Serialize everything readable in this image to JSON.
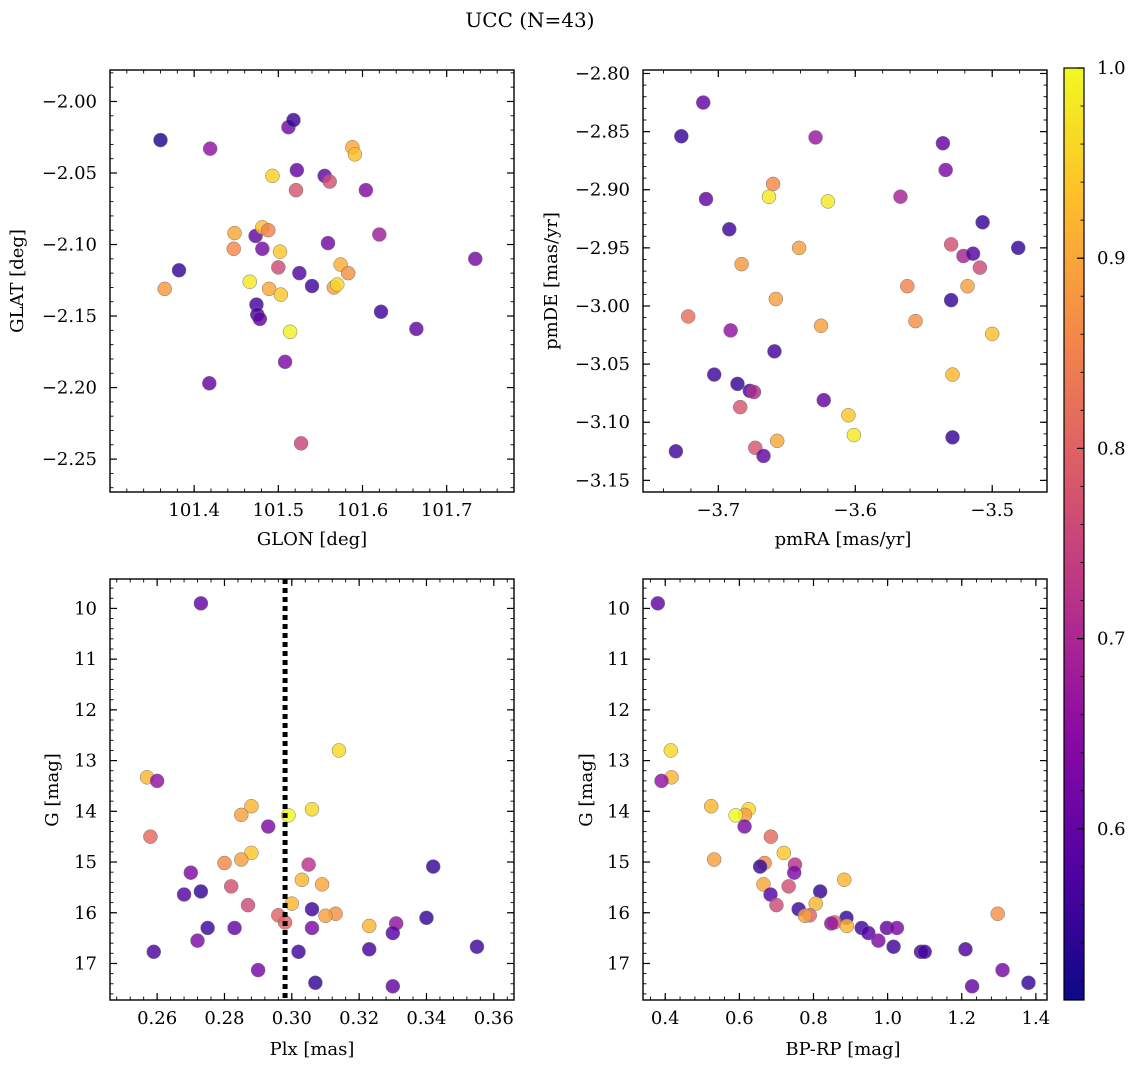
{
  "figure": {
    "title": "UCC (N=43)"
  },
  "colorbar": {
    "min": 0.51,
    "max": 1.0,
    "ticks": [
      0.6,
      0.7,
      0.8,
      0.9,
      1.0
    ],
    "tick_labels": [
      "0.6",
      "0.7",
      "0.8",
      "0.9",
      "1.0"
    ],
    "colormap": "plasma",
    "colors": [
      "#0d0887",
      "#5302a3",
      "#8b0aa5",
      "#b83289",
      "#db5c68",
      "#f48849",
      "#febd2a",
      "#f0f921"
    ]
  },
  "chart_data": [
    {
      "id": "glon-glat",
      "type": "scatter",
      "xlabel": "GLON [deg]",
      "ylabel": "GLAT [deg]",
      "xlim": [
        101.3,
        101.78
      ],
      "ylim": [
        -2.273,
        -1.978
      ],
      "y_inverted": false,
      "xticks": [
        101.4,
        101.5,
        101.6,
        101.7
      ],
      "xtick_labels": [
        "101.4",
        "101.5",
        "101.6",
        "101.7"
      ],
      "yticks": [
        -2.25,
        -2.2,
        -2.15,
        -2.1,
        -2.05,
        -2.0
      ],
      "ytick_labels": [
        "−2.25",
        "−2.20",
        "−2.15",
        "−2.10",
        "−2.05",
        "−2.00"
      ],
      "points": [
        {
          "x": 101.36,
          "y": -2.027,
          "c": 0.53
        },
        {
          "x": 101.419,
          "y": -2.033,
          "c": 0.66
        },
        {
          "x": 101.382,
          "y": -2.118,
          "c": 0.55
        },
        {
          "x": 101.365,
          "y": -2.131,
          "c": 0.88
        },
        {
          "x": 101.418,
          "y": -2.197,
          "c": 0.6
        },
        {
          "x": 101.447,
          "y": -2.103,
          "c": 0.86
        },
        {
          "x": 101.448,
          "y": -2.092,
          "c": 0.9
        },
        {
          "x": 101.466,
          "y": -2.126,
          "c": 0.98
        },
        {
          "x": 101.473,
          "y": -2.094,
          "c": 0.6
        },
        {
          "x": 101.474,
          "y": -2.142,
          "c": 0.56
        },
        {
          "x": 101.475,
          "y": -2.149,
          "c": 0.57
        },
        {
          "x": 101.478,
          "y": -2.152,
          "c": 0.6
        },
        {
          "x": 101.481,
          "y": -2.103,
          "c": 0.62
        },
        {
          "x": 101.481,
          "y": -2.088,
          "c": 0.93
        },
        {
          "x": 101.488,
          "y": -2.09,
          "c": 0.85
        },
        {
          "x": 101.489,
          "y": -2.131,
          "c": 0.9
        },
        {
          "x": 101.493,
          "y": -2.052,
          "c": 0.95
        },
        {
          "x": 101.5,
          "y": -2.116,
          "c": 0.76
        },
        {
          "x": 101.502,
          "y": -2.105,
          "c": 0.94
        },
        {
          "x": 101.503,
          "y": -2.135,
          "c": 0.94
        },
        {
          "x": 101.508,
          "y": -2.182,
          "c": 0.63
        },
        {
          "x": 101.512,
          "y": -2.018,
          "c": 0.62
        },
        {
          "x": 101.514,
          "y": -2.161,
          "c": 0.99
        },
        {
          "x": 101.518,
          "y": -2.013,
          "c": 0.55
        },
        {
          "x": 101.521,
          "y": -2.062,
          "c": 0.78
        },
        {
          "x": 101.522,
          "y": -2.048,
          "c": 0.6
        },
        {
          "x": 101.525,
          "y": -2.12,
          "c": 0.58
        },
        {
          "x": 101.527,
          "y": -2.239,
          "c": 0.75
        },
        {
          "x": 101.54,
          "y": -2.129,
          "c": 0.56
        },
        {
          "x": 101.555,
          "y": -2.052,
          "c": 0.6
        },
        {
          "x": 101.559,
          "y": -2.099,
          "c": 0.62
        },
        {
          "x": 101.561,
          "y": -2.056,
          "c": 0.77
        },
        {
          "x": 101.566,
          "y": -2.13,
          "c": 0.89
        },
        {
          "x": 101.57,
          "y": -2.128,
          "c": 0.96
        },
        {
          "x": 101.574,
          "y": -2.114,
          "c": 0.91
        },
        {
          "x": 101.583,
          "y": -2.12,
          "c": 0.87
        },
        {
          "x": 101.588,
          "y": -2.032,
          "c": 0.9
        },
        {
          "x": 101.591,
          "y": -2.037,
          "c": 0.93
        },
        {
          "x": 101.604,
          "y": -2.062,
          "c": 0.64
        },
        {
          "x": 101.62,
          "y": -2.093,
          "c": 0.68
        },
        {
          "x": 101.622,
          "y": -2.147,
          "c": 0.56
        },
        {
          "x": 101.664,
          "y": -2.159,
          "c": 0.6
        },
        {
          "x": 101.734,
          "y": -2.11,
          "c": 0.62
        }
      ]
    },
    {
      "id": "pmra-pmde",
      "type": "scatter",
      "xlabel": "pmRA [mas/yr]",
      "ylabel": "pmDE [mas/yr]",
      "xlim": [
        -3.755,
        -3.46
      ],
      "ylim": [
        -3.16,
        -2.797
      ],
      "y_inverted": false,
      "xticks": [
        -3.7,
        -3.6,
        -3.5
      ],
      "xtick_labels": [
        "−3.7",
        "−3.6",
        "−3.5"
      ],
      "yticks": [
        -3.15,
        -3.1,
        -3.05,
        -3.0,
        -2.95,
        -2.9,
        -2.85,
        -2.8
      ],
      "ytick_labels": [
        "−3.15",
        "−3.10",
        "−3.05",
        "−3.00",
        "−2.95",
        "−2.90",
        "−2.85",
        "−2.80"
      ],
      "points": [
        {
          "x": -3.711,
          "y": -2.825,
          "c": 0.6
        },
        {
          "x": -3.727,
          "y": -2.854,
          "c": 0.55
        },
        {
          "x": -3.709,
          "y": -2.908,
          "c": 0.6
        },
        {
          "x": -3.692,
          "y": -2.934,
          "c": 0.56
        },
        {
          "x": -3.731,
          "y": -3.125,
          "c": 0.56
        },
        {
          "x": -3.722,
          "y": -3.009,
          "c": 0.82
        },
        {
          "x": -3.691,
          "y": -3.021,
          "c": 0.66
        },
        {
          "x": -3.703,
          "y": -3.059,
          "c": 0.56
        },
        {
          "x": -3.686,
          "y": -3.067,
          "c": 0.55
        },
        {
          "x": -3.683,
          "y": -2.964,
          "c": 0.88
        },
        {
          "x": -3.684,
          "y": -3.087,
          "c": 0.78
        },
        {
          "x": -3.677,
          "y": -3.073,
          "c": 0.57
        },
        {
          "x": -3.674,
          "y": -3.074,
          "c": 0.71
        },
        {
          "x": -3.673,
          "y": -3.122,
          "c": 0.78
        },
        {
          "x": -3.667,
          "y": -3.129,
          "c": 0.6
        },
        {
          "x": -3.663,
          "y": -2.906,
          "c": 0.98
        },
        {
          "x": -3.66,
          "y": -2.895,
          "c": 0.86
        },
        {
          "x": -3.659,
          "y": -3.039,
          "c": 0.56
        },
        {
          "x": -3.658,
          "y": -2.994,
          "c": 0.89
        },
        {
          "x": -3.657,
          "y": -3.116,
          "c": 0.9
        },
        {
          "x": -3.641,
          "y": -2.95,
          "c": 0.89
        },
        {
          "x": -3.629,
          "y": -2.855,
          "c": 0.67
        },
        {
          "x": -3.625,
          "y": -3.017,
          "c": 0.89
        },
        {
          "x": -3.623,
          "y": -3.081,
          "c": 0.6
        },
        {
          "x": -3.62,
          "y": -2.91,
          "c": 0.98
        },
        {
          "x": -3.605,
          "y": -3.094,
          "c": 0.94
        },
        {
          "x": -3.601,
          "y": -3.111,
          "c": 0.98
        },
        {
          "x": -3.567,
          "y": -2.906,
          "c": 0.69
        },
        {
          "x": -3.562,
          "y": -2.983,
          "c": 0.85
        },
        {
          "x": -3.556,
          "y": -3.013,
          "c": 0.87
        },
        {
          "x": -3.536,
          "y": -2.86,
          "c": 0.6
        },
        {
          "x": -3.534,
          "y": -2.883,
          "c": 0.63
        },
        {
          "x": -3.53,
          "y": -2.947,
          "c": 0.77
        },
        {
          "x": -3.53,
          "y": -2.995,
          "c": 0.55
        },
        {
          "x": -3.529,
          "y": -3.059,
          "c": 0.92
        },
        {
          "x": -3.529,
          "y": -3.113,
          "c": 0.55
        },
        {
          "x": -3.521,
          "y": -2.957,
          "c": 0.69
        },
        {
          "x": -3.518,
          "y": -2.983,
          "c": 0.89
        },
        {
          "x": -3.514,
          "y": -2.955,
          "c": 0.58
        },
        {
          "x": -3.509,
          "y": -2.967,
          "c": 0.76
        },
        {
          "x": -3.507,
          "y": -2.928,
          "c": 0.55
        },
        {
          "x": -3.5,
          "y": -3.024,
          "c": 0.93
        },
        {
          "x": -3.481,
          "y": -2.95,
          "c": 0.55
        }
      ]
    },
    {
      "id": "plx-g",
      "type": "scatter",
      "xlabel": "Plx [mas]",
      "ylabel": "G [mag]",
      "xlim": [
        0.246,
        0.366
      ],
      "ylim": [
        9.42,
        17.72
      ],
      "y_inverted": true,
      "vline": 0.298,
      "xticks": [
        0.26,
        0.28,
        0.3,
        0.32,
        0.34,
        0.36
      ],
      "xtick_labels": [
        "0.26",
        "0.28",
        "0.30",
        "0.32",
        "0.34",
        "0.36"
      ],
      "yticks": [
        10,
        11,
        12,
        13,
        14,
        15,
        16,
        17
      ],
      "ytick_labels": [
        "10",
        "11",
        "12",
        "13",
        "14",
        "15",
        "16",
        "17"
      ],
      "points": [
        {
          "x": 0.273,
          "y": 9.9,
          "c": 0.6
        },
        {
          "x": 0.314,
          "y": 12.8,
          "c": 0.96
        },
        {
          "x": 0.257,
          "y": 13.33,
          "c": 0.92
        },
        {
          "x": 0.26,
          "y": 13.4,
          "c": 0.66
        },
        {
          "x": 0.288,
          "y": 13.9,
          "c": 0.92
        },
        {
          "x": 0.306,
          "y": 13.96,
          "c": 0.96
        },
        {
          "x": 0.285,
          "y": 14.07,
          "c": 0.89
        },
        {
          "x": 0.299,
          "y": 14.08,
          "c": 1.0
        },
        {
          "x": 0.293,
          "y": 14.3,
          "c": 0.63
        },
        {
          "x": 0.258,
          "y": 14.5,
          "c": 0.81
        },
        {
          "x": 0.288,
          "y": 14.82,
          "c": 0.94
        },
        {
          "x": 0.285,
          "y": 14.95,
          "c": 0.89
        },
        {
          "x": 0.28,
          "y": 15.02,
          "c": 0.86
        },
        {
          "x": 0.305,
          "y": 15.05,
          "c": 0.72
        },
        {
          "x": 0.342,
          "y": 15.09,
          "c": 0.55
        },
        {
          "x": 0.27,
          "y": 15.21,
          "c": 0.63
        },
        {
          "x": 0.303,
          "y": 15.35,
          "c": 0.92
        },
        {
          "x": 0.309,
          "y": 15.44,
          "c": 0.9
        },
        {
          "x": 0.282,
          "y": 15.48,
          "c": 0.77
        },
        {
          "x": 0.273,
          "y": 15.58,
          "c": 0.55
        },
        {
          "x": 0.268,
          "y": 15.64,
          "c": 0.58
        },
        {
          "x": 0.3,
          "y": 15.82,
          "c": 0.92
        },
        {
          "x": 0.287,
          "y": 15.85,
          "c": 0.76
        },
        {
          "x": 0.306,
          "y": 15.93,
          "c": 0.56
        },
        {
          "x": 0.313,
          "y": 16.02,
          "c": 0.87
        },
        {
          "x": 0.296,
          "y": 16.05,
          "c": 0.8
        },
        {
          "x": 0.31,
          "y": 16.06,
          "c": 0.89
        },
        {
          "x": 0.34,
          "y": 16.1,
          "c": 0.55
        },
        {
          "x": 0.298,
          "y": 16.19,
          "c": 0.8
        },
        {
          "x": 0.331,
          "y": 16.21,
          "c": 0.66
        },
        {
          "x": 0.323,
          "y": 16.26,
          "c": 0.92
        },
        {
          "x": 0.275,
          "y": 16.3,
          "c": 0.56
        },
        {
          "x": 0.283,
          "y": 16.3,
          "c": 0.6
        },
        {
          "x": 0.306,
          "y": 16.3,
          "c": 0.63
        },
        {
          "x": 0.33,
          "y": 16.4,
          "c": 0.58
        },
        {
          "x": 0.272,
          "y": 16.55,
          "c": 0.63
        },
        {
          "x": 0.355,
          "y": 16.67,
          "c": 0.56
        },
        {
          "x": 0.323,
          "y": 16.72,
          "c": 0.57
        },
        {
          "x": 0.259,
          "y": 16.77,
          "c": 0.57
        },
        {
          "x": 0.302,
          "y": 16.77,
          "c": 0.56
        },
        {
          "x": 0.29,
          "y": 17.13,
          "c": 0.62
        },
        {
          "x": 0.307,
          "y": 17.38,
          "c": 0.55
        },
        {
          "x": 0.33,
          "y": 17.45,
          "c": 0.6
        }
      ]
    },
    {
      "id": "bprp-g",
      "type": "scatter",
      "xlabel": "BP-RP [mag]",
      "ylabel": "G [mag]",
      "xlim": [
        0.34,
        1.43
      ],
      "ylim": [
        9.42,
        17.72
      ],
      "y_inverted": true,
      "xticks": [
        0.4,
        0.6,
        0.8,
        1.0,
        1.2,
        1.4
      ],
      "xtick_labels": [
        "0.4",
        "0.6",
        "0.8",
        "1.0",
        "1.2",
        "1.4"
      ],
      "yticks": [
        10,
        11,
        12,
        13,
        14,
        15,
        16,
        17
      ],
      "ytick_labels": [
        "10",
        "11",
        "12",
        "13",
        "14",
        "15",
        "16",
        "17"
      ],
      "points": [
        {
          "x": 0.38,
          "y": 9.9,
          "c": 0.6
        },
        {
          "x": 0.415,
          "y": 12.8,
          "c": 0.96
        },
        {
          "x": 0.417,
          "y": 13.33,
          "c": 0.92
        },
        {
          "x": 0.39,
          "y": 13.4,
          "c": 0.66
        },
        {
          "x": 0.524,
          "y": 13.9,
          "c": 0.92
        },
        {
          "x": 0.625,
          "y": 13.96,
          "c": 0.96
        },
        {
          "x": 0.615,
          "y": 14.07,
          "c": 0.89
        },
        {
          "x": 0.59,
          "y": 14.08,
          "c": 1.0
        },
        {
          "x": 0.614,
          "y": 14.3,
          "c": 0.63
        },
        {
          "x": 0.685,
          "y": 14.5,
          "c": 0.81
        },
        {
          "x": 0.72,
          "y": 14.82,
          "c": 0.94
        },
        {
          "x": 0.532,
          "y": 14.95,
          "c": 0.89
        },
        {
          "x": 0.668,
          "y": 15.02,
          "c": 0.86
        },
        {
          "x": 0.75,
          "y": 15.05,
          "c": 0.72
        },
        {
          "x": 0.656,
          "y": 15.09,
          "c": 0.55
        },
        {
          "x": 0.748,
          "y": 15.21,
          "c": 0.63
        },
        {
          "x": 0.883,
          "y": 15.35,
          "c": 0.92
        },
        {
          "x": 0.665,
          "y": 15.44,
          "c": 0.9
        },
        {
          "x": 0.733,
          "y": 15.48,
          "c": 0.77
        },
        {
          "x": 0.818,
          "y": 15.58,
          "c": 0.55
        },
        {
          "x": 0.684,
          "y": 15.64,
          "c": 0.58
        },
        {
          "x": 0.806,
          "y": 15.82,
          "c": 0.92
        },
        {
          "x": 0.7,
          "y": 15.85,
          "c": 0.76
        },
        {
          "x": 0.76,
          "y": 15.93,
          "c": 0.56
        },
        {
          "x": 1.297,
          "y": 16.02,
          "c": 0.87
        },
        {
          "x": 0.79,
          "y": 16.05,
          "c": 0.8
        },
        {
          "x": 0.777,
          "y": 16.06,
          "c": 0.89
        },
        {
          "x": 0.889,
          "y": 16.1,
          "c": 0.55
        },
        {
          "x": 0.857,
          "y": 16.19,
          "c": 0.8
        },
        {
          "x": 0.848,
          "y": 16.21,
          "c": 0.66
        },
        {
          "x": 0.89,
          "y": 16.26,
          "c": 0.92
        },
        {
          "x": 0.93,
          "y": 16.3,
          "c": 0.56
        },
        {
          "x": 0.998,
          "y": 16.3,
          "c": 0.6
        },
        {
          "x": 1.025,
          "y": 16.3,
          "c": 0.63
        },
        {
          "x": 0.948,
          "y": 16.4,
          "c": 0.58
        },
        {
          "x": 0.975,
          "y": 16.55,
          "c": 0.63
        },
        {
          "x": 1.016,
          "y": 16.67,
          "c": 0.56
        },
        {
          "x": 1.21,
          "y": 16.72,
          "c": 0.57
        },
        {
          "x": 1.09,
          "y": 16.77,
          "c": 0.57
        },
        {
          "x": 1.1,
          "y": 16.77,
          "c": 0.56
        },
        {
          "x": 1.31,
          "y": 17.13,
          "c": 0.62
        },
        {
          "x": 1.38,
          "y": 17.38,
          "c": 0.55
        },
        {
          "x": 1.228,
          "y": 17.45,
          "c": 0.6
        }
      ]
    }
  ]
}
